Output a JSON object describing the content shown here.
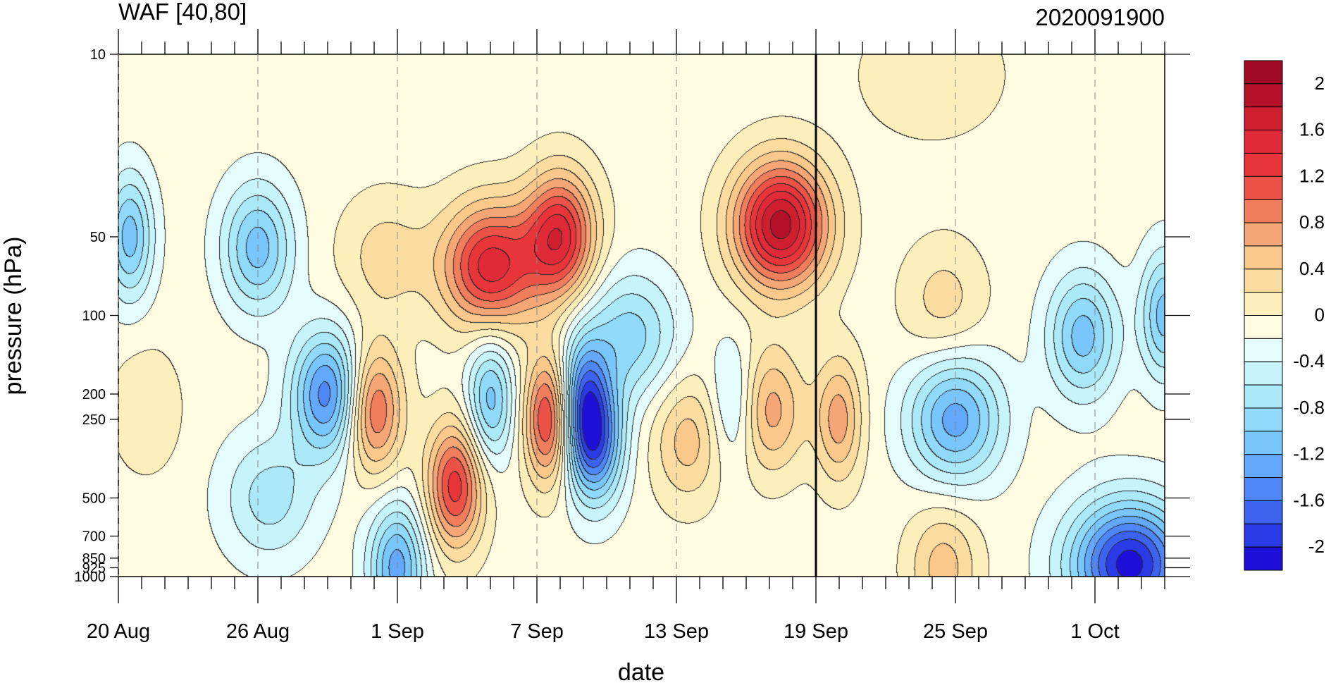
{
  "chart_data": {
    "type": "heatmap",
    "title_left": "WAF [40,80]",
    "title_right": "2020091900",
    "xlabel": "date",
    "ylabel": "pressure (hPa)",
    "x_tick_labels": [
      "20 Aug",
      "26 Aug",
      "1 Sep",
      "7 Sep",
      "13 Sep",
      "19 Sep",
      "25 Sep",
      "1 Oct"
    ],
    "x_tick_day_offsets": [
      0,
      6,
      12,
      18,
      24,
      30,
      36,
      42
    ],
    "x_range_days": [
      0,
      45
    ],
    "reference_line_day": 30,
    "y_scale": "log",
    "y_range": [
      1000,
      10
    ],
    "y_tick_values": [
      10,
      50,
      100,
      200,
      250,
      500,
      700,
      850,
      925,
      1000
    ],
    "y_tick_labels": [
      "10",
      "50",
      "100",
      "200",
      "250",
      "500",
      "700",
      "850",
      "925",
      "1000"
    ],
    "colorbar_labels": [
      "2",
      "1.6",
      "1.2",
      "0.8",
      "0.4",
      "0",
      "-0.4",
      "-0.8",
      "-1.2",
      "-1.6",
      "-2"
    ],
    "colorbar_levels": [
      -2.2,
      -2.0,
      -1.8,
      -1.6,
      -1.4,
      -1.2,
      -1.0,
      -0.8,
      -0.6,
      -0.4,
      -0.2,
      0,
      0.2,
      0.4,
      0.6,
      0.8,
      1.0,
      1.2,
      1.4,
      1.6,
      1.8,
      2.0,
      2.2
    ],
    "colorbar_colors": [
      "#1e10d8",
      "#2a3ae6",
      "#3d62ee",
      "#4f86f5",
      "#63a8fb",
      "#78c6fb",
      "#90d9f8",
      "#ace9f8",
      "#c6f4fa",
      "#e4fcfc",
      "#fffce2",
      "#fdefbc",
      "#fbdca0",
      "#f9c88a",
      "#f5a676",
      "#f07d5c",
      "#ec5248",
      "#e8353a",
      "#e02a38",
      "#cf1f2e",
      "#b4102a",
      "#a00a25"
    ],
    "features": [
      {
        "day": 0.5,
        "pressure": 50,
        "value": -1.0,
        "spread_days": 1.0
      },
      {
        "day": 1.2,
        "pressure": 230,
        "value": 0.3,
        "spread_days": 1.5
      },
      {
        "day": 6.0,
        "pressure": 55,
        "value": -1.0,
        "spread_days": 1.5
      },
      {
        "day": 6.5,
        "pressure": 500,
        "value": -0.6,
        "spread_days": 2.0
      },
      {
        "day": 9.0,
        "pressure": 200,
        "value": -1.4,
        "spread_days": 1.5
      },
      {
        "day": 11.5,
        "pressure": 60,
        "value": 0.4,
        "spread_days": 2.0
      },
      {
        "day": 11.0,
        "pressure": 230,
        "value": 1.2,
        "spread_days": 1.2
      },
      {
        "day": 12.0,
        "pressure": 920,
        "value": -1.2,
        "spread_days": 1.2
      },
      {
        "day": 14.5,
        "pressure": 450,
        "value": 1.4,
        "spread_days": 1.2
      },
      {
        "day": 16.0,
        "pressure": 65,
        "value": 1.6,
        "spread_days": 2.0
      },
      {
        "day": 16.0,
        "pressure": 210,
        "value": -1.0,
        "spread_days": 1.0
      },
      {
        "day": 19.0,
        "pressure": 50,
        "value": 1.6,
        "spread_days": 1.5
      },
      {
        "day": 18.5,
        "pressure": 250,
        "value": 1.4,
        "spread_days": 1.0
      },
      {
        "day": 20.0,
        "pressure": 200,
        "value": -1.0,
        "spread_days": 1.0
      },
      {
        "day": 20.5,
        "pressure": 300,
        "value": -1.6,
        "spread_days": 1.2
      },
      {
        "day": 22.0,
        "pressure": 120,
        "value": -0.8,
        "spread_days": 2.0
      },
      {
        "day": 24.5,
        "pressure": 300,
        "value": 0.6,
        "spread_days": 1.5
      },
      {
        "day": 26.5,
        "pressure": 220,
        "value": -0.6,
        "spread_days": 1.0
      },
      {
        "day": 28.5,
        "pressure": 45,
        "value": 2.0,
        "spread_days": 2.0
      },
      {
        "day": 28.0,
        "pressure": 230,
        "value": 0.8,
        "spread_days": 1.5
      },
      {
        "day": 31.0,
        "pressure": 250,
        "value": 0.8,
        "spread_days": 1.0
      },
      {
        "day": 35.5,
        "pressure": 90,
        "value": 0.4,
        "spread_days": 1.8
      },
      {
        "day": 36.0,
        "pressure": 250,
        "value": -1.2,
        "spread_days": 2.0
      },
      {
        "day": 35.5,
        "pressure": 920,
        "value": 0.6,
        "spread_days": 1.5
      },
      {
        "day": 35.0,
        "pressure": 12,
        "value": 0.3,
        "spread_days": 3.0
      },
      {
        "day": 41.5,
        "pressure": 120,
        "value": -1.0,
        "spread_days": 1.5
      },
      {
        "day": 43.5,
        "pressure": 900,
        "value": -2.0,
        "spread_days": 2.5
      },
      {
        "day": 45.0,
        "pressure": 100,
        "value": -1.0,
        "spread_days": 1.0
      }
    ]
  }
}
